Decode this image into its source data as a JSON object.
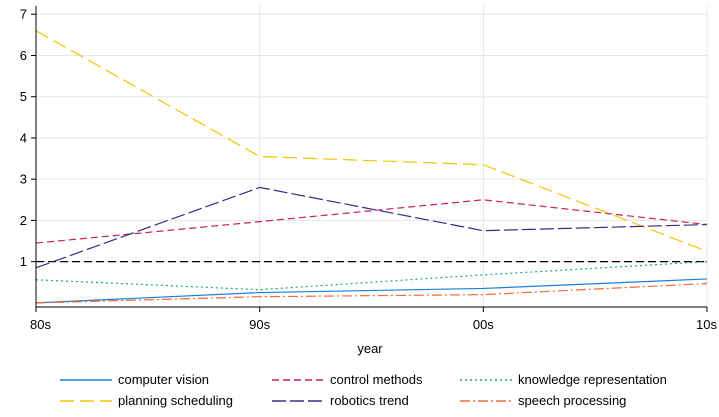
{
  "chart_data": {
    "type": "line",
    "xlabel": "year",
    "ylabel": "",
    "categories": [
      "80s",
      "90s",
      "00s",
      "10s"
    ],
    "ylim": [
      -0.1,
      7.2
    ],
    "yticks": [
      1,
      2,
      3,
      4,
      5,
      6,
      7
    ],
    "grid": true,
    "legend_position": "bottom",
    "reference_line": {
      "y": 1,
      "style": "dashed",
      "color": "#000000"
    },
    "series": [
      {
        "name": "computer vision",
        "values": [
          0.0,
          0.25,
          0.35,
          0.58
        ],
        "color": "#1a7fd6",
        "dash": "solid"
      },
      {
        "name": "control methods",
        "values": [
          1.45,
          1.97,
          2.5,
          1.9
        ],
        "color": "#cc1f5e",
        "dash": "7,4"
      },
      {
        "name": "knowledge representation",
        "values": [
          0.56,
          0.32,
          0.68,
          1.0
        ],
        "color": "#1ba88a",
        "dash": "2,3"
      },
      {
        "name": "planning scheduling",
        "values": [
          6.6,
          3.55,
          3.35,
          1.25
        ],
        "color": "#f2c500",
        "dash": "14,6"
      },
      {
        "name": "robotics trend",
        "values": [
          0.85,
          2.8,
          1.75,
          1.9
        ],
        "color": "#3c2a8c",
        "dash": "14,4"
      },
      {
        "name": "speech processing",
        "values": [
          0.0,
          0.15,
          0.2,
          0.47
        ],
        "color": "#f06a3a",
        "dash": "10,3,2,3"
      }
    ]
  }
}
